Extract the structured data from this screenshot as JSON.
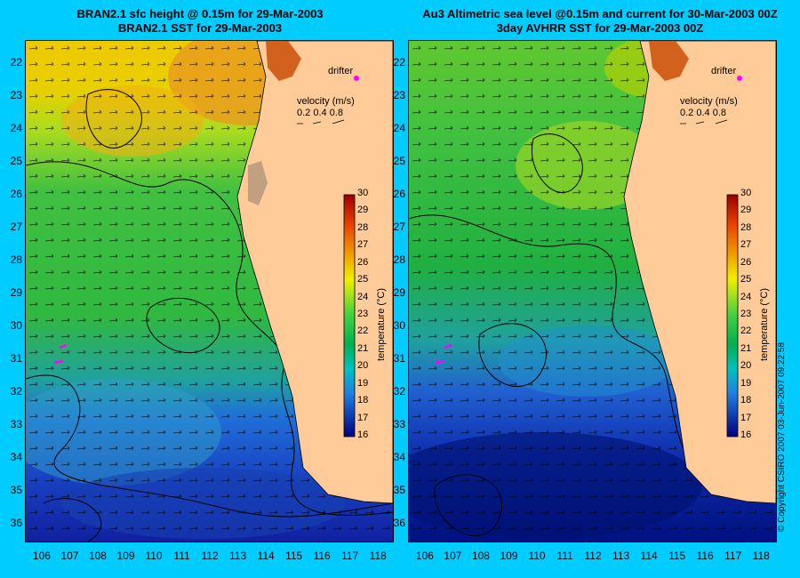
{
  "left_panel": {
    "title_line1": "BRAN2.1 sfc height @ 0.15m for 29-Mar-2003",
    "title_line2": "BRAN2.1 SST for 29-Mar-2003",
    "drifter_label": "drifter",
    "velocity_label": "velocity (m/s)",
    "velocity_scale": "0.2 0.4 0.8",
    "colorbar_title": "temperature (°C)"
  },
  "right_panel": {
    "title_line1": "Au3 Altimetric sea level  @0.15m and current for 30-Mar-2003 00Z",
    "title_line2": "3day AVHRR SST for 29-Mar-2003 00Z",
    "drifter_label": "drifter",
    "velocity_label": "velocity (m/s)",
    "velocity_scale": "0.2 0.4 0.8",
    "colorbar_title": "temperature (°C)"
  },
  "copyright": "© Copyright CSIRO 2007    03-Jun-2007 09:22:58",
  "map_data": {
    "lon_range": [
      105.4,
      118.5
    ],
    "lat_range": [
      21.3,
      36.5
    ],
    "lon_ticks": [
      "106",
      "107",
      "108",
      "109",
      "110",
      "111",
      "112",
      "113",
      "114",
      "115",
      "116",
      "117",
      "118"
    ],
    "lat_ticks": [
      "22",
      "23",
      "24",
      "25",
      "26",
      "27",
      "28",
      "29",
      "30",
      "31",
      "32",
      "33",
      "34",
      "35",
      "36"
    ],
    "colorbar_ticks": [
      "30",
      "29",
      "28",
      "27",
      "26",
      "25",
      "24",
      "23",
      "22",
      "21",
      "20",
      "19",
      "18",
      "17",
      "16"
    ],
    "colorbar_range": [
      16,
      30
    ],
    "land_color": "#ffcc99",
    "background_color": "#00ccff",
    "arrow_color": "#000000",
    "drifter_color": "#ff00ff"
  }
}
